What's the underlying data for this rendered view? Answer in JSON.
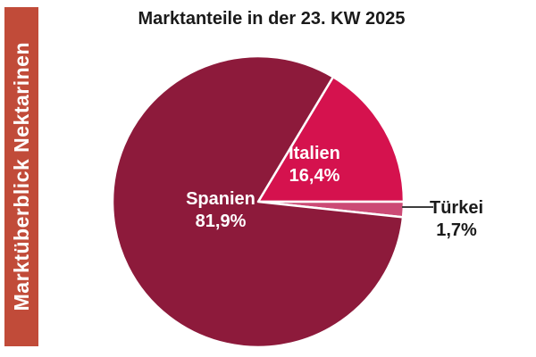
{
  "sidebar": {
    "label": "Marktüberblick Nektarinen",
    "bg_color": "#c14b39",
    "text_color": "#ffffff"
  },
  "chart_data": {
    "type": "pie",
    "title": "Marktanteile in der 23. KW 2025",
    "slices": [
      {
        "id": "spanien",
        "label": "Spanien",
        "value_pct": 81.9,
        "display": "81,9%",
        "color": "#8d1a3b",
        "label_placement": "inside"
      },
      {
        "id": "italien",
        "label": "Italien",
        "value_pct": 16.4,
        "display": "16,4%",
        "color": "#d5124e",
        "label_placement": "inside"
      },
      {
        "id": "tuerkei",
        "label": "Türkei",
        "value_pct": 1.7,
        "display": "1,7%",
        "color": "#cc4a75",
        "label_placement": "outside-right-with-leader-line"
      }
    ],
    "draw_order": [
      "italien",
      "tuerkei",
      "spanien"
    ],
    "start_angle_deg": 30.96,
    "direction": "clockwise",
    "slice_border_color": "#ffffff",
    "leader_line_color": "#3d3d3d",
    "inside_label_color": "#ffffff",
    "outside_label_color": "#1a1a1a",
    "legend": "none"
  }
}
